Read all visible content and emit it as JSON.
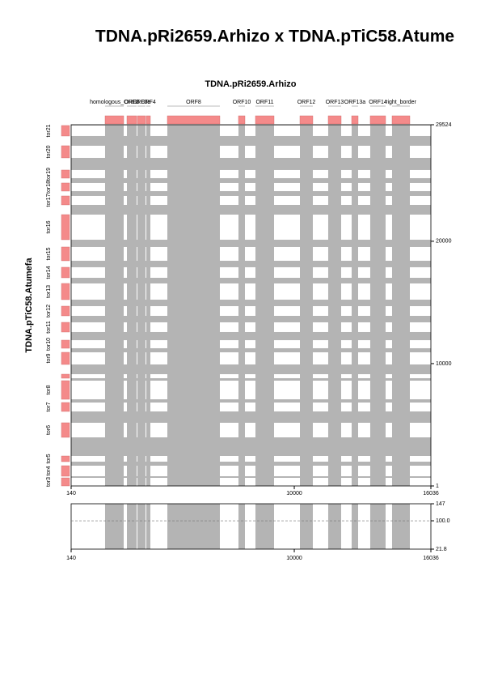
{
  "chart_data": {
    "type": "dotplot",
    "title": "TDNA.pRi2659.Arhizo x TDNA.pTiC58.Atume",
    "x_label": "TDNA.pRi2659.Arhizo",
    "y_label": "TDNA.pTiC58.Atumefa",
    "xlim": [
      140,
      16036
    ],
    "xticks": [
      140,
      10000,
      16036
    ],
    "ylim": [
      1,
      29524
    ],
    "yticks": [
      1,
      10000,
      20000,
      29524
    ],
    "x_features": [
      {
        "label": "homologous_ORF2",
        "start": 1640,
        "end": 2462
      },
      {
        "label": "ORF3",
        "start": 2605,
        "end": 3033
      },
      {
        "label": "ORF3a",
        "start": 3069,
        "end": 3426
      },
      {
        "label": "ORF4",
        "start": 3462,
        "end": 3641
      },
      {
        "label": "ORF8",
        "start": 4391,
        "end": 6712
      },
      {
        "label": "ORF10",
        "start": 7534,
        "end": 7820
      },
      {
        "label": "ORF11",
        "start": 8284,
        "end": 9106
      },
      {
        "label": "ORF12",
        "start": 10249,
        "end": 10820
      },
      {
        "label": "ORF13",
        "start": 11499,
        "end": 12071
      },
      {
        "label": "ORF13a",
        "start": 12535,
        "end": 12821
      },
      {
        "label": "ORF14",
        "start": 13356,
        "end": 14035
      },
      {
        "label": "right_border",
        "start": 14321,
        "end": 15107
      }
    ],
    "y_features": [
      {
        "label": "tor21",
        "start": 28599,
        "end": 29460
      },
      {
        "label": "tor20",
        "start": 26812,
        "end": 27805
      },
      {
        "label": "tor19",
        "start": 25157,
        "end": 25819
      },
      {
        "label": "tor18",
        "start": 24098,
        "end": 24760
      },
      {
        "label": "tor17",
        "start": 22972,
        "end": 23700
      },
      {
        "label": "tor16",
        "start": 20126,
        "end": 22178
      },
      {
        "label": "tor15",
        "start": 18405,
        "end": 19530
      },
      {
        "label": "tor14",
        "start": 17014,
        "end": 17875
      },
      {
        "label": "tor13",
        "start": 15227,
        "end": 16551
      },
      {
        "label": "tor12",
        "start": 13903,
        "end": 14697
      },
      {
        "label": "tor11",
        "start": 12579,
        "end": 13373
      },
      {
        "label": "tor10",
        "start": 11255,
        "end": 11917
      },
      {
        "label": "tor9",
        "start": 9931,
        "end": 10924
      },
      {
        "label": null,
        "start": 8806,
        "end": 9136
      },
      {
        "label": "tor8",
        "start": 7084,
        "end": 8607
      },
      {
        "label": "tor7",
        "start": 6091,
        "end": 6820
      },
      {
        "label": "tor6",
        "start": 3973,
        "end": 5165
      },
      {
        "label": "tor5",
        "start": 1987,
        "end": 2450
      },
      {
        "label": "tor4",
        "start": 795,
        "end": 1656
      },
      {
        "label": "tor3",
        "start": 1,
        "end": 663
      }
    ],
    "identity_ylim": [
      21.8,
      147
    ],
    "identity_yticks": [
      {
        "value": 21.8,
        "label": "21.8"
      },
      {
        "value": 100,
        "label": "100.0"
      },
      147
    ],
    "feature_color": "#f48a8a",
    "band_color": "#b4b4b4"
  }
}
